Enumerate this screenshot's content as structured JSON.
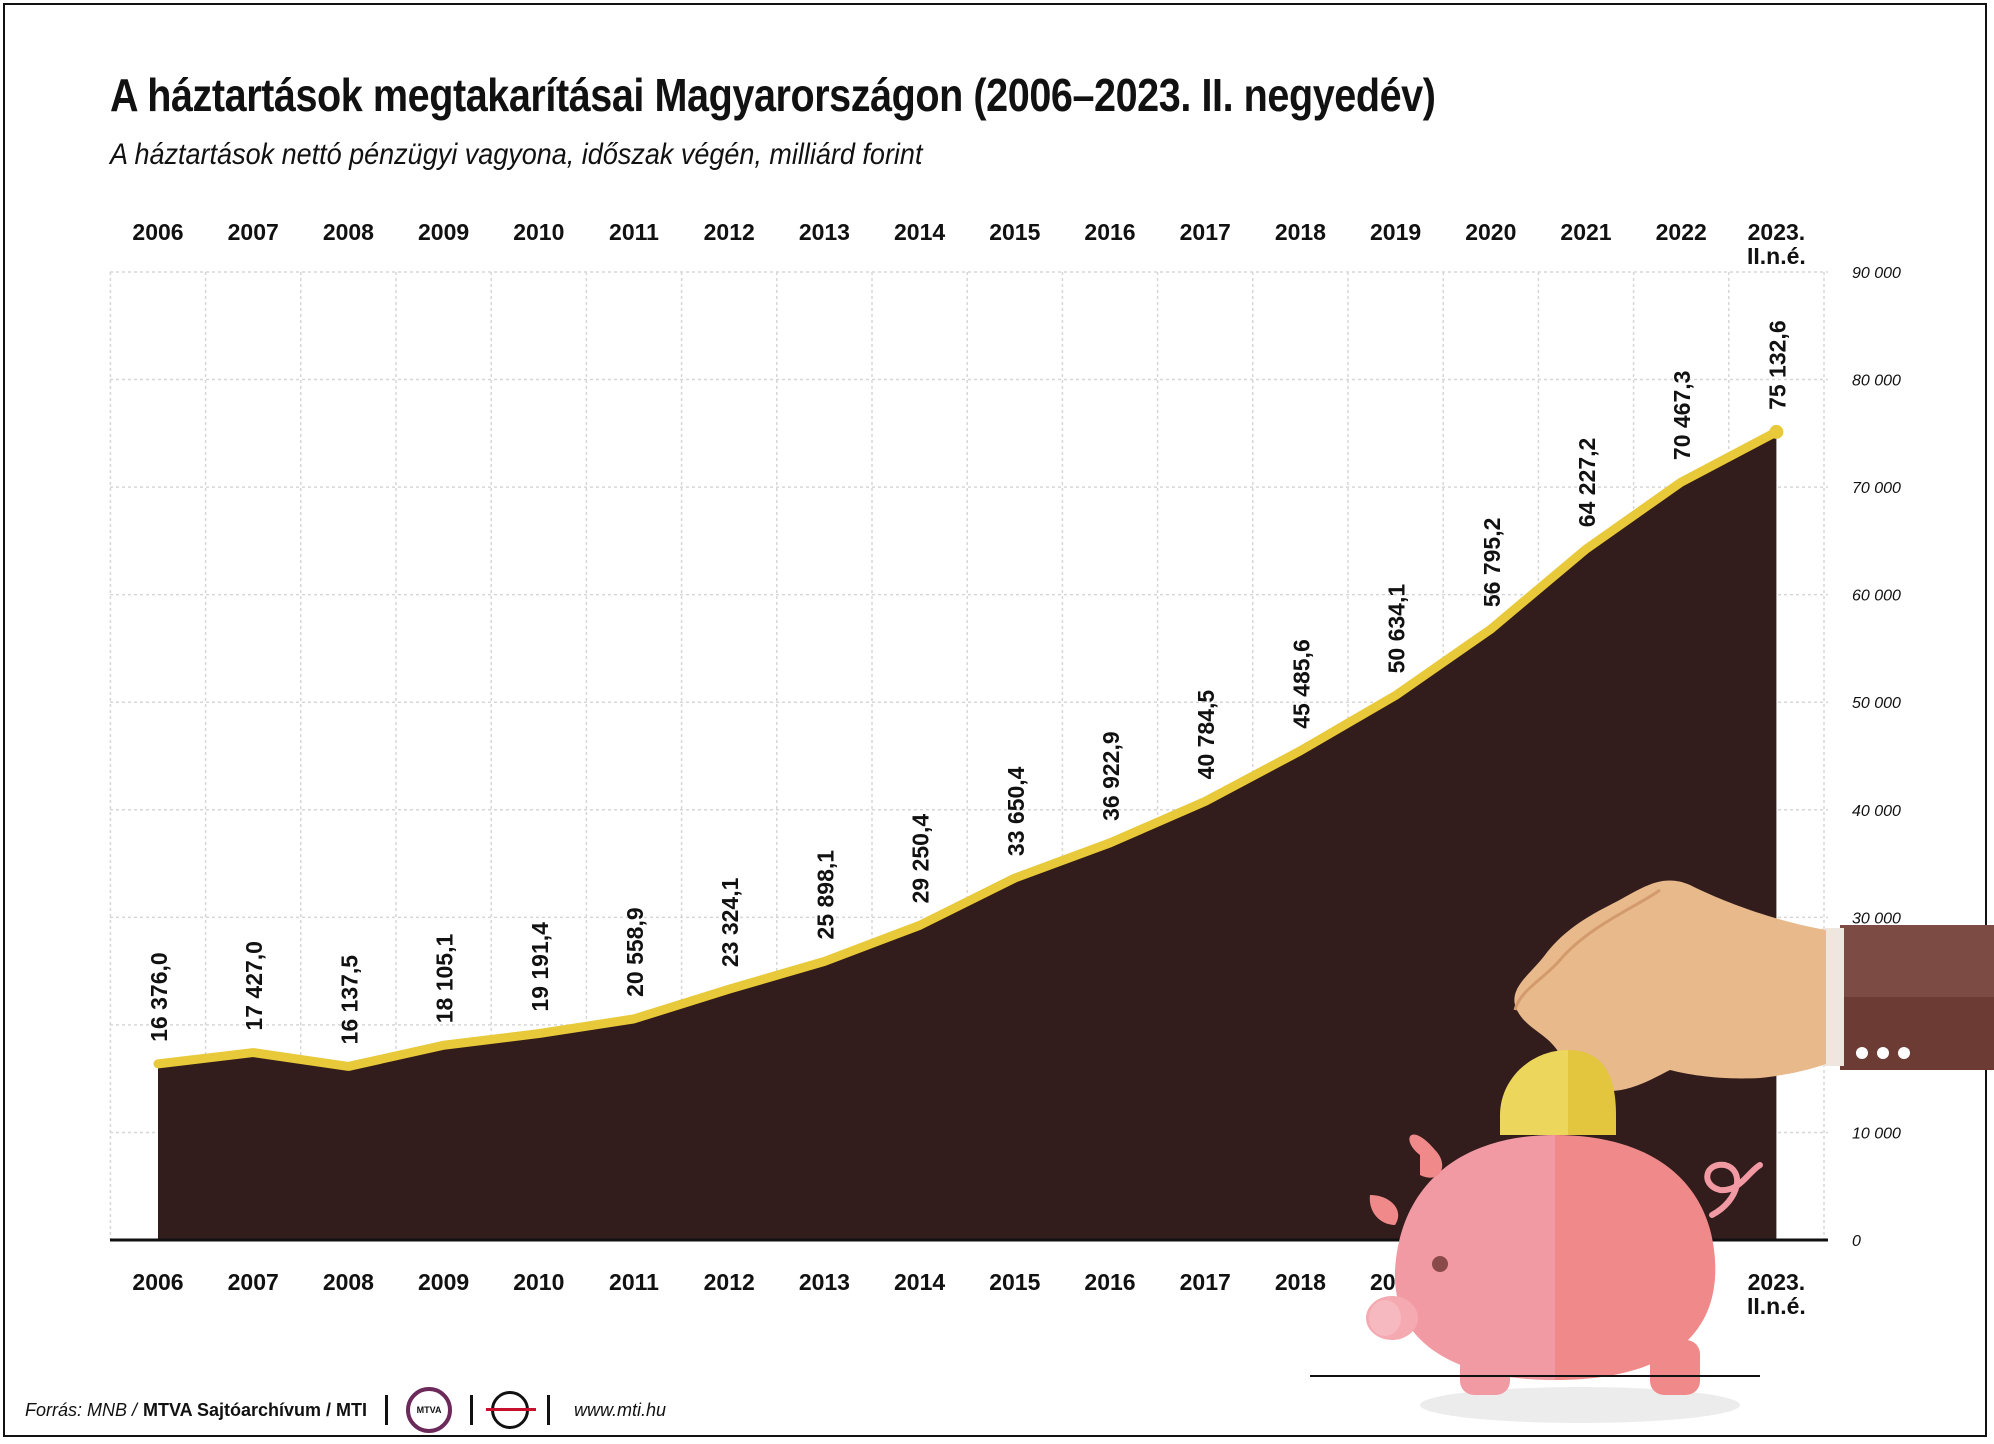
{
  "title": "A háztartások megtakarításai Magyarországon (2006–2023. II. negyedév)",
  "subtitle": "A háztartások nettó pénzügyi vagyona, időszak végén, milliárd forint",
  "footer": {
    "source": "Forrás: MNB /",
    "org": "MTVA Sajtóarchívum / MTI",
    "logo_text": "MTVA",
    "url": "www.mti.hu"
  },
  "colors": {
    "area": "#331d1c",
    "line": "#e8c93a",
    "grid": "#d7d7d7",
    "pig": "#f08a8a",
    "pig_light": "#f29aa4",
    "coin": "#e8c93a",
    "hand": "#e8b98a",
    "sleeve": "#6b3b34"
  },
  "chart_data": {
    "type": "area",
    "categories": [
      "2006",
      "2007",
      "2008",
      "2009",
      "2010",
      "2011",
      "2012",
      "2013",
      "2014",
      "2015",
      "2016",
      "2017",
      "2018",
      "2019",
      "2020",
      "2021",
      "2022",
      "2023. II.n.é."
    ],
    "category_lines": [
      [
        "2006"
      ],
      [
        "2007"
      ],
      [
        "2008"
      ],
      [
        "2009"
      ],
      [
        "2010"
      ],
      [
        "2011"
      ],
      [
        "2012"
      ],
      [
        "2013"
      ],
      [
        "2014"
      ],
      [
        "2015"
      ],
      [
        "2016"
      ],
      [
        "2017"
      ],
      [
        "2018"
      ],
      [
        "2019"
      ],
      [
        "2020"
      ],
      [
        "2021"
      ],
      [
        "2022"
      ],
      [
        "2023.",
        "II.n.é."
      ]
    ],
    "values": [
      16376.0,
      17427.0,
      16137.5,
      18105.1,
      19191.4,
      20558.9,
      23324.1,
      25898.1,
      29250.4,
      33650.4,
      36922.9,
      40784.5,
      45485.6,
      50634.1,
      56795.2,
      64227.2,
      70467.3,
      75132.6
    ],
    "data_labels": [
      "16 376,0",
      "17 427,0",
      "16 137,5",
      "18 105,1",
      "19 191,4",
      "20 558,9",
      "23 324,1",
      "25 898,1",
      "29 250,4",
      "33 650,4",
      "36 922,9",
      "40 784,5",
      "45 485,6",
      "50 634,1",
      "56 795,2",
      "64 227,2",
      "70 467,3",
      "75 132,6"
    ],
    "ylim": [
      0,
      90000
    ],
    "yticks": [
      0,
      10000,
      20000,
      30000,
      40000,
      50000,
      60000,
      70000,
      80000,
      90000
    ],
    "ytick_labels": [
      "0",
      "10 000",
      "20 000",
      "30 000",
      "40 000",
      "50 000",
      "60 000",
      "70 000",
      "80 000",
      "90 000"
    ],
    "y_axis_side": "right",
    "grid": true,
    "xlabels_top": true,
    "xlabels_bottom": true
  }
}
